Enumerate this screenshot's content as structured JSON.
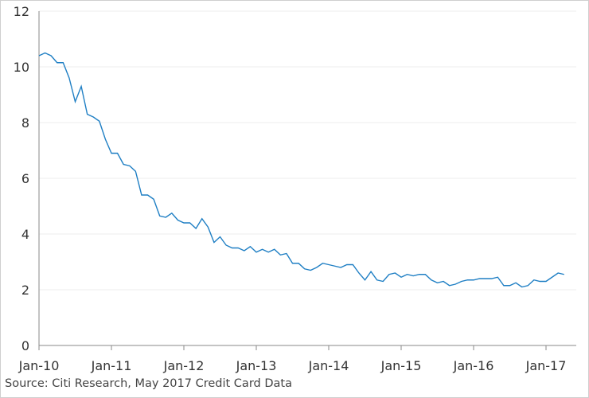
{
  "chart_data": {
    "type": "line",
    "title": "",
    "xlabel": "",
    "ylabel": "",
    "source": "Source: Citi Research, May 2017 Credit Card Data",
    "ylim": [
      0,
      12
    ],
    "y_ticks": [
      0,
      2,
      4,
      6,
      8,
      10,
      12
    ],
    "x_ticks": [
      "Jan-10",
      "Jan-11",
      "Jan-12",
      "Jan-13",
      "Jan-14",
      "Jan-15",
      "Jan-16",
      "Jan-17"
    ],
    "grid": true,
    "line_color": "#1f7fc4",
    "series": [
      {
        "x": [
          "Jan-10",
          "Feb-10",
          "Mar-10",
          "Apr-10",
          "May-10",
          "Jun-10",
          "Jul-10",
          "Aug-10",
          "Sep-10",
          "Oct-10",
          "Nov-10",
          "Dec-10",
          "Jan-11",
          "Feb-11",
          "Mar-11",
          "Apr-11",
          "May-11",
          "Jun-11",
          "Jul-11",
          "Aug-11",
          "Sep-11",
          "Oct-11",
          "Nov-11",
          "Dec-11",
          "Jan-12",
          "Feb-12",
          "Mar-12",
          "Apr-12",
          "May-12",
          "Jun-12",
          "Jul-12",
          "Aug-12",
          "Sep-12",
          "Oct-12",
          "Nov-12",
          "Dec-12",
          "Jan-13",
          "Feb-13",
          "Mar-13",
          "Apr-13",
          "May-13",
          "Jun-13",
          "Jul-13",
          "Aug-13",
          "Sep-13",
          "Oct-13",
          "Nov-13",
          "Dec-13",
          "Jan-14",
          "Feb-14",
          "Mar-14",
          "Apr-14",
          "May-14",
          "Jun-14",
          "Jul-14",
          "Aug-14",
          "Sep-14",
          "Oct-14",
          "Nov-14",
          "Dec-14",
          "Jan-15",
          "Feb-15",
          "Mar-15",
          "Apr-15",
          "May-15",
          "Jun-15",
          "Jul-15",
          "Aug-15",
          "Sep-15",
          "Oct-15",
          "Nov-15",
          "Dec-15",
          "Jan-16",
          "Feb-16",
          "Mar-16",
          "Apr-16",
          "May-16",
          "Jun-16",
          "Jul-16",
          "Aug-16",
          "Sep-16",
          "Oct-16",
          "Nov-16",
          "Dec-16",
          "Jan-17",
          "Feb-17",
          "Mar-17",
          "Apr-17"
        ],
        "values": [
          10.4,
          10.5,
          10.4,
          10.15,
          10.15,
          9.6,
          8.75,
          9.3,
          8.3,
          8.2,
          8.05,
          7.4,
          6.9,
          6.9,
          6.5,
          6.45,
          6.25,
          5.4,
          5.4,
          5.25,
          4.65,
          4.6,
          4.75,
          4.5,
          4.4,
          4.4,
          4.2,
          4.55,
          4.25,
          3.7,
          3.9,
          3.6,
          3.5,
          3.5,
          3.4,
          3.55,
          3.35,
          3.45,
          3.35,
          3.45,
          3.25,
          3.3,
          2.95,
          2.95,
          2.75,
          2.7,
          2.8,
          2.95,
          2.9,
          2.85,
          2.8,
          2.9,
          2.9,
          2.6,
          2.35,
          2.65,
          2.35,
          2.3,
          2.55,
          2.6,
          2.45,
          2.55,
          2.5,
          2.55,
          2.55,
          2.35,
          2.25,
          2.3,
          2.15,
          2.2,
          2.3,
          2.35,
          2.35,
          2.4,
          2.4,
          2.4,
          2.45,
          2.15,
          2.15,
          2.25,
          2.1,
          2.15,
          2.35,
          2.3,
          2.3,
          2.45,
          2.6,
          2.55
        ]
      }
    ]
  }
}
